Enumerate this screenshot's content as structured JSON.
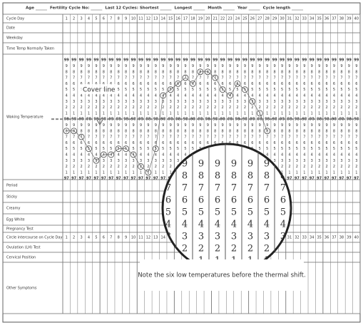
{
  "header_fields": [
    "Age",
    "Fertility Cycle No:",
    "Last 12 Cycles: Shortest",
    "Longest",
    "Month",
    "Year",
    "Cycle length"
  ],
  "row_labels": [
    "Cycle Day",
    "Date",
    "Weekday",
    "Time Temp Normally Taken",
    "Waking Temperature",
    "Period",
    "Sticky",
    "Creamy",
    "Egg White",
    "Pregnancy Test",
    "Circle intercourse on Cycle Day",
    "Ovulation (LH) Test",
    "Cervical Position",
    "Other Symptoms"
  ],
  "cycle_days": [
    1,
    2,
    3,
    4,
    5,
    6,
    7,
    8,
    9,
    10,
    11,
    12,
    13,
    14,
    15,
    16,
    17,
    18,
    19,
    20,
    21,
    22,
    23,
    24,
    25,
    26,
    27,
    28,
    29,
    30,
    31,
    32,
    33,
    34,
    35,
    36,
    37,
    38,
    39,
    40
  ],
  "temperature_scale": [
    "99",
    "9",
    "8",
    "7",
    "6",
    "5",
    "4",
    "3",
    "2",
    "1",
    "98",
    "9",
    "8",
    "7",
    "6",
    "5",
    "4",
    "3",
    "2",
    "1",
    "97"
  ],
  "temperatures": [
    97.8,
    97.8,
    97.7,
    97.5,
    97.3,
    97.4,
    97.4,
    97.5,
    97.5,
    97.4,
    97.2,
    97.1,
    97.5,
    98.4,
    98.5,
    98.6,
    98.7,
    98.6,
    98.8,
    98.8,
    98.7,
    98.5,
    98.4,
    98.6,
    98.5,
    98.3,
    98.1,
    97.8,
    null,
    null,
    null,
    null,
    null,
    null,
    null,
    null,
    null,
    null,
    null,
    null
  ],
  "cover_line": 98.0,
  "cover_line_label": "Cover line",
  "note": "Note the six low temperatures before the thermal shift."
}
